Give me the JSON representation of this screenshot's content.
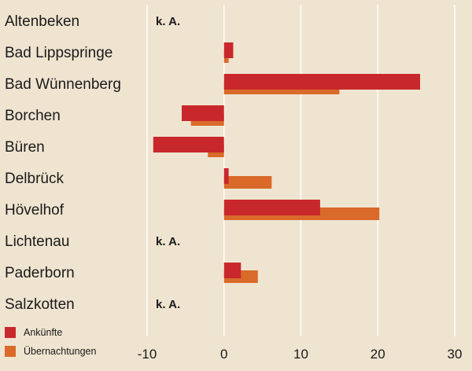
{
  "chart_data": {
    "type": "bar",
    "orientation": "horizontal",
    "categories": [
      "Altenbeken",
      "Bad Lippspringe",
      "Bad Wünnenberg",
      "Borchen",
      "Büren",
      "Delbrück",
      "Hövelhof",
      "Lichtenau",
      "Paderborn",
      "Salzkotten"
    ],
    "series": [
      {
        "name": "Ankünfte",
        "color": "#c8282c",
        "values": [
          null,
          1.2,
          25.5,
          -5.5,
          -9.2,
          0.6,
          12.5,
          null,
          2.2,
          null
        ]
      },
      {
        "name": "Übernachtungen",
        "color": "#d96a2a",
        "values": [
          null,
          0.6,
          15.0,
          -4.3,
          -2.1,
          6.2,
          20.2,
          null,
          4.4,
          null
        ]
      }
    ],
    "na_label": "k. A.",
    "xlim": [
      -10,
      30
    ],
    "xticks": [
      "-10",
      "0",
      "10",
      "20",
      "30"
    ],
    "grid": true,
    "legend_position": "bottom-left"
  }
}
